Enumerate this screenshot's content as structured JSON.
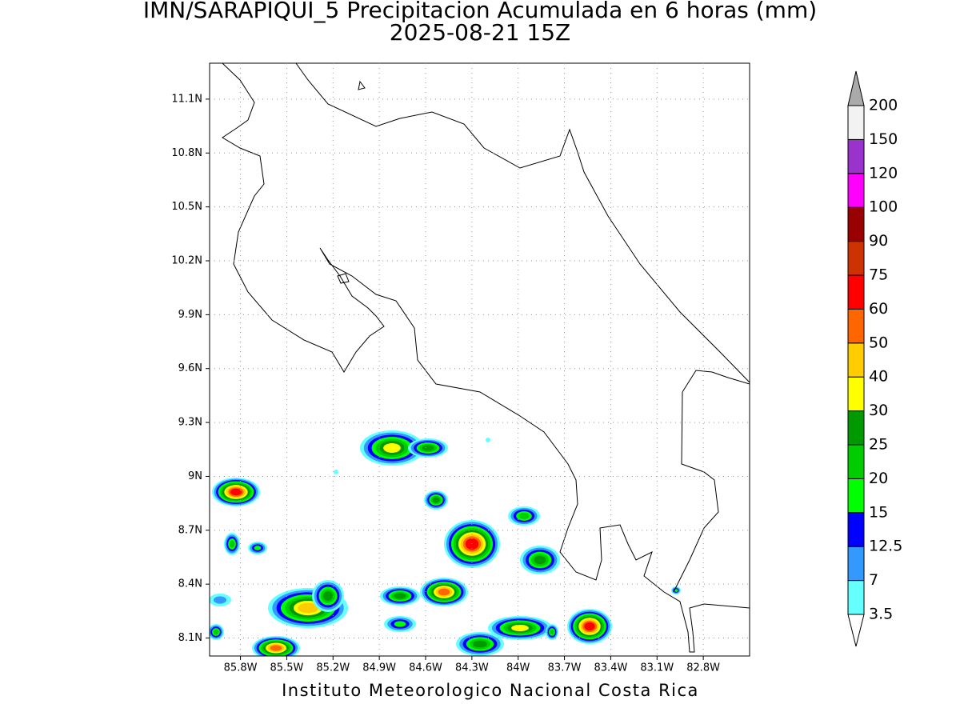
{
  "title": "IMN/SARAPIQUI_5 Precipitacion Acumulada en 6 horas (mm)",
  "subtitle": "2025-08-21 15Z",
  "map": {
    "xlim": [
      -86,
      -82.5
    ],
    "ylim": [
      8,
      11.3
    ],
    "grid": true,
    "xticks": [
      {
        "value": -85.8,
        "label": "85.8W"
      },
      {
        "value": -85.5,
        "label": "85.5W"
      },
      {
        "value": -85.2,
        "label": "85.2W"
      },
      {
        "value": -84.9,
        "label": "84.9W"
      },
      {
        "value": -84.6,
        "label": "84.6W"
      },
      {
        "value": -84.3,
        "label": "84.3W"
      },
      {
        "value": -84,
        "label": "84W"
      },
      {
        "value": -83.7,
        "label": "83.7W"
      },
      {
        "value": -83.4,
        "label": "83.4W"
      },
      {
        "value": -83.1,
        "label": "83.1W"
      },
      {
        "value": -82.8,
        "label": "82.8W"
      }
    ],
    "yticks": [
      {
        "value": 8.1,
        "label": "8.1N"
      },
      {
        "value": 8.4,
        "label": "8.4N"
      },
      {
        "value": 8.7,
        "label": "8.7N"
      },
      {
        "value": 9,
        "label": "9N"
      },
      {
        "value": 9.3,
        "label": "9.3N"
      },
      {
        "value": 9.6,
        "label": "9.6N"
      },
      {
        "value": 9.9,
        "label": "9.9N"
      },
      {
        "value": 10.2,
        "label": "10.2N"
      },
      {
        "value": 10.5,
        "label": "10.5N"
      },
      {
        "value": 10.8,
        "label": "10.8N"
      },
      {
        "value": 11.1,
        "label": "11.1N"
      }
    ]
  },
  "legend": {
    "levels": [
      3.5,
      7,
      12.5,
      15,
      20,
      25,
      30,
      40,
      50,
      60,
      75,
      90,
      100,
      120,
      150,
      200
    ],
    "colors": [
      "#66ffff",
      "#3399ff",
      "#0000ff",
      "#00ff00",
      "#00cc00",
      "#009900",
      "#ffff00",
      "#ffcc00",
      "#ff6600",
      "#ff0000",
      "#cc3300",
      "#990000",
      "#ff00ff",
      "#9933cc",
      "#f2f2f2"
    ],
    "below_color": "#ffffff",
    "above_color": "#aaaaaa"
  },
  "footer": "Instituto Meteorologico Nacional Costa Rica"
}
